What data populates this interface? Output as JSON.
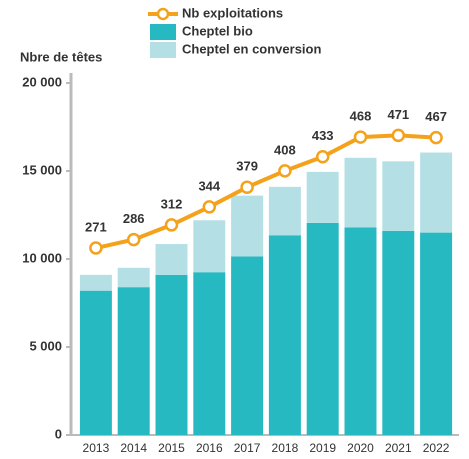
{
  "chart_data": {
    "type": "bar",
    "stacked": true,
    "y_label": "Nbre de têtes",
    "categories": [
      "2013",
      "2014",
      "2015",
      "2016",
      "2017",
      "2018",
      "2019",
      "2020",
      "2021",
      "2022"
    ],
    "series": [
      {
        "name": "Nb exploitations",
        "type": "line",
        "axis": "y2",
        "color": "#f4a21b",
        "values": [
          271,
          286,
          312,
          344,
          379,
          408,
          433,
          468,
          471,
          467
        ]
      },
      {
        "name": "Cheptel bio",
        "type": "bar",
        "color": "#27b9c1",
        "values": [
          8200,
          8400,
          9100,
          9250,
          10150,
          11350,
          12050,
          11800,
          11600,
          11500
        ]
      },
      {
        "name": "Cheptel en conversion",
        "type": "bar",
        "color": "#b4e0e5",
        "values": [
          900,
          1100,
          1750,
          2950,
          3450,
          2750,
          2900,
          3950,
          3950,
          4550
        ]
      }
    ],
    "ylim": [
      0,
      20000
    ],
    "yticks": [
      0,
      {
        "value": 5000,
        "label": "5 000"
      },
      {
        "value": 10000,
        "label": "10 000"
      },
      {
        "value": 15000,
        "label": "15 000"
      },
      {
        "value": 20000,
        "label": "20 000"
      }
    ],
    "y2lim": [
      -61,
      564
    ]
  }
}
